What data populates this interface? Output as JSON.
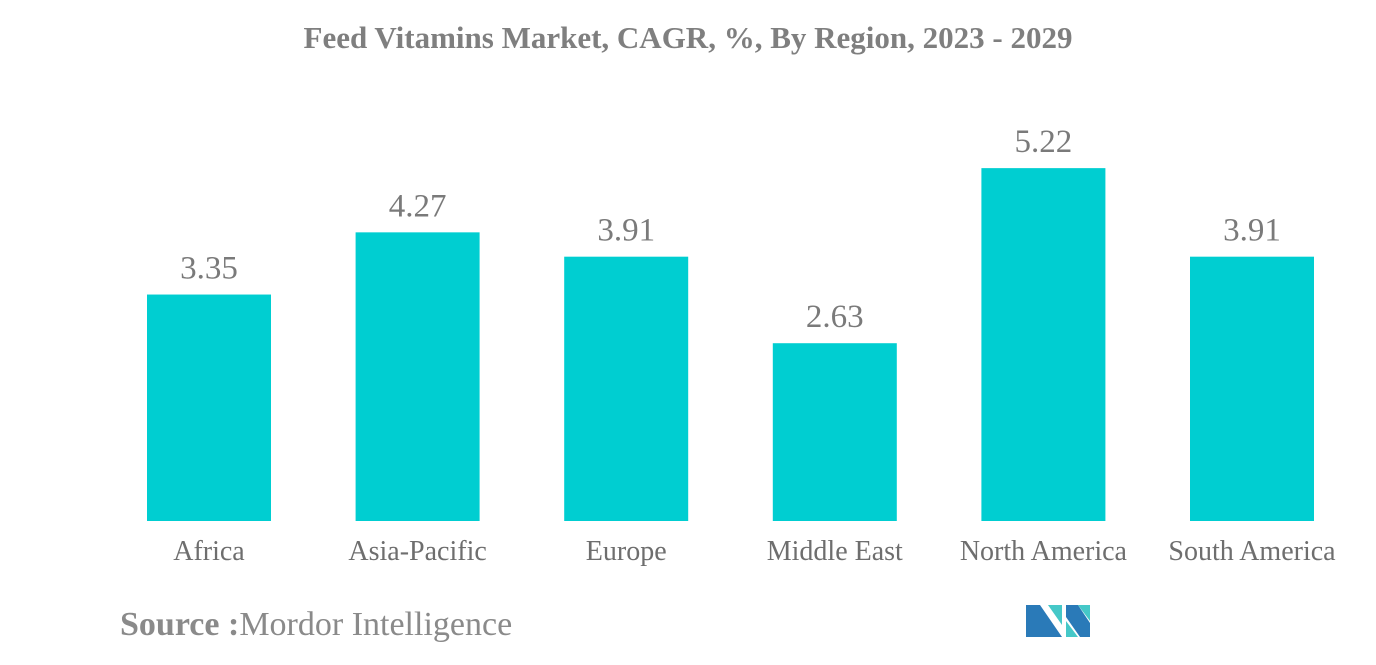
{
  "chart_data": {
    "type": "bar",
    "title": "Feed Vitamins Market, CAGR, %, By Region, 2023 - 2029",
    "categories": [
      "Africa",
      "Asia-Pacific",
      "Europe",
      "Middle East",
      "North America",
      "South America"
    ],
    "values": [
      3.35,
      4.27,
      3.91,
      2.63,
      5.22,
      3.91
    ],
    "xlabel": "",
    "ylabel": "",
    "grid": false,
    "bar_color": "#00ced1",
    "data_labels": true
  },
  "source": {
    "label": "Source :",
    "value": "Mordor Intelligence"
  },
  "logo": {
    "colors": [
      "#2a7ab8",
      "#45c8c8"
    ]
  }
}
